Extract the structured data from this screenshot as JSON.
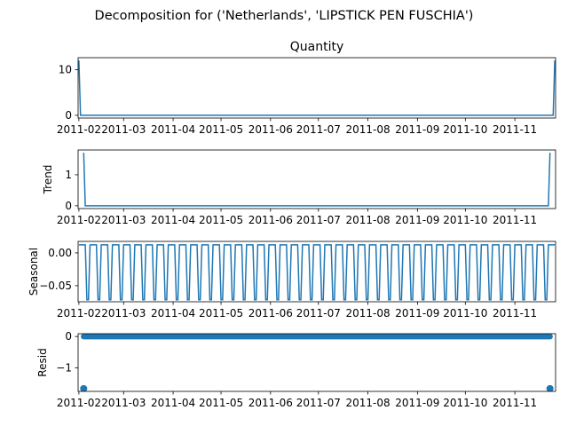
{
  "figure": {
    "suptitle": "Decomposition for ('Netherlands', 'LIPSTICK PEN FUSCHIA')",
    "line_color": "#1f77b4"
  },
  "chart_data": [
    {
      "type": "line",
      "title": "Quantity",
      "ylabel": "",
      "ylim": [
        -0.6,
        12.6
      ],
      "yticks": [
        0,
        10
      ],
      "xlim": [
        -0.5,
        298.5
      ],
      "xtick_positions": [
        0,
        28,
        59,
        89,
        120,
        150,
        181,
        212,
        242,
        273
      ],
      "xtick_labels": [
        "2011-02",
        "2011-03",
        "2011-04",
        "2011-05",
        "2011-06",
        "2011-07",
        "2011-08",
        "2011-09",
        "2011-10",
        "2011-11"
      ],
      "points": [
        [
          0,
          12
        ],
        [
          1,
          0
        ],
        [
          297,
          0
        ],
        [
          298,
          12
        ]
      ]
    },
    {
      "type": "line",
      "title": "",
      "ylabel": "Trend",
      "ylim": [
        -0.09,
        1.8
      ],
      "yticks": [
        0,
        1
      ],
      "xlim": [
        -0.5,
        298.5
      ],
      "xtick_positions": [
        0,
        28,
        59,
        89,
        120,
        150,
        181,
        212,
        242,
        273
      ],
      "xtick_labels": [
        "2011-02",
        "2011-03",
        "2011-04",
        "2011-05",
        "2011-06",
        "2011-07",
        "2011-08",
        "2011-09",
        "2011-10",
        "2011-11"
      ],
      "points": [
        [
          3,
          1.71
        ],
        [
          4,
          0
        ],
        [
          294,
          0
        ],
        [
          295,
          1.71
        ]
      ]
    },
    {
      "type": "line",
      "title": "",
      "ylabel": "Seasonal",
      "ylim": [
        -0.0745,
        0.0175
      ],
      "yticks": [
        -0.05,
        0.0
      ],
      "ytick_labels": [
        "−0.05",
        "0.00"
      ],
      "xlim": [
        -0.5,
        298.5
      ],
      "xtick_positions": [
        0,
        28,
        59,
        89,
        120,
        150,
        181,
        212,
        242,
        273
      ],
      "xtick_labels": [
        "2011-02",
        "2011-03",
        "2011-04",
        "2011-05",
        "2011-06",
        "2011-07",
        "2011-08",
        "2011-09",
        "2011-10",
        "2011-11"
      ],
      "period": 7,
      "pattern": [
        0.0122,
        0.0122,
        0.0122,
        0.0122,
        0.0122,
        -0.0714,
        -0.0714
      ],
      "n": 299
    },
    {
      "type": "scatter",
      "title": "",
      "ylabel": "Resid",
      "ylim": [
        -1.75,
        0.09
      ],
      "yticks": [
        -1,
        0
      ],
      "ytick_labels": [
        "−1",
        "0"
      ],
      "xlim": [
        -0.5,
        298.5
      ],
      "xtick_positions": [
        0,
        28,
        59,
        89,
        120,
        150,
        181,
        212,
        242,
        273
      ],
      "xtick_labels": [
        "2011-02",
        "2011-03",
        "2011-04",
        "2011-05",
        "2011-06",
        "2011-07",
        "2011-08",
        "2011-09",
        "2011-10",
        "2011-11"
      ],
      "x_range": [
        3,
        295
      ],
      "baseline": 0,
      "outliers": [
        [
          3,
          -1.66
        ],
        [
          295,
          -1.66
        ]
      ]
    }
  ]
}
